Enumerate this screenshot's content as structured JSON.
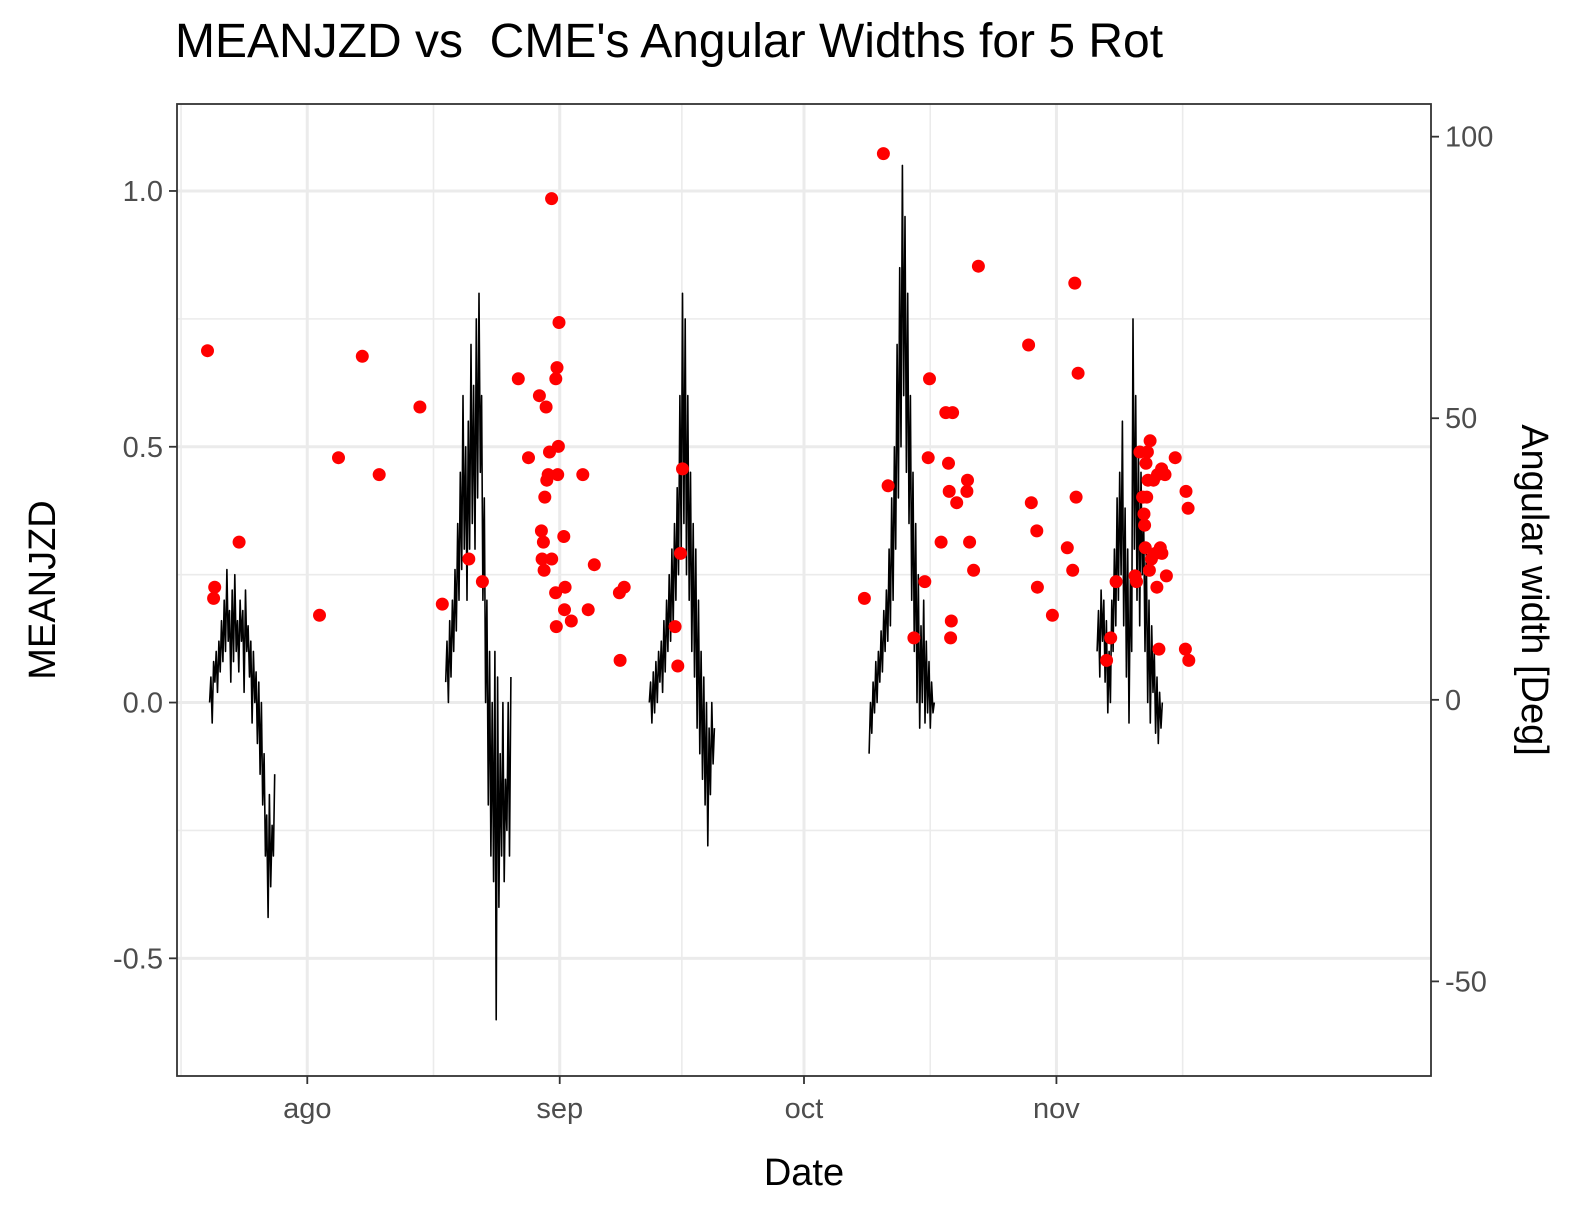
{
  "chart_data": {
    "type": "line",
    "title": "MEANJZD vs  CME's Angular Widths for 5 Rot",
    "xlabel": "Date",
    "ylabel": "MEANJZD",
    "y2label": "Angular width [Deg]",
    "x_ticks": [
      {
        "date": "2015-08-01",
        "label": "ago"
      },
      {
        "date": "2015-09-01",
        "label": "sep"
      },
      {
        "date": "2015-10-01",
        "label": "oct"
      },
      {
        "date": "2015-11-01",
        "label": "nov"
      }
    ],
    "xlim": [
      "2015-07-16",
      "2015-12-17"
    ],
    "ylim": [
      -0.73,
      1.17
    ],
    "y_ticks": [
      "-0.5",
      "0.0",
      "0.5",
      "1.0"
    ],
    "y2lim": [
      -66.8,
      105.8
    ],
    "y2_ticks": [
      "-50",
      "0",
      "50",
      "100"
    ],
    "grid": true,
    "series": [
      {
        "kind": "line",
        "color": "#000000",
        "segments": [
          {
            "start": "2015-07-20",
            "end": "2015-07-28",
            "values": [
              0.0,
              0.05,
              -0.04,
              0.08,
              0.04,
              0.1,
              0.02,
              0.12,
              0.06,
              0.16,
              0.08,
              0.2,
              0.1,
              0.26,
              0.12,
              0.18,
              0.04,
              0.22,
              0.08,
              0.25,
              0.1,
              0.16,
              0.06,
              0.2,
              0.12,
              0.18,
              0.02,
              0.22,
              0.1,
              0.15,
              0.05,
              0.12,
              -0.04,
              0.1,
              0.0,
              0.06,
              -0.08,
              0.04,
              -0.14,
              0.0,
              -0.2,
              -0.1,
              -0.3,
              -0.22,
              -0.42,
              -0.18,
              -0.36,
              -0.24,
              -0.3,
              -0.14
            ]
          },
          {
            "start": "2015-08-18",
            "end": "2015-08-26",
            "values": [
              0.04,
              0.12,
              0.0,
              0.16,
              0.05,
              0.2,
              0.1,
              0.26,
              0.14,
              0.35,
              0.2,
              0.45,
              0.26,
              0.6,
              0.3,
              0.5,
              0.2,
              0.55,
              0.3,
              0.7,
              0.35,
              0.62,
              0.3,
              0.75,
              0.4,
              0.8,
              0.45,
              0.6,
              0.2,
              0.4,
              0.0,
              0.2,
              -0.2,
              0.1,
              -0.3,
              0.0,
              -0.35,
              0.1,
              -0.62,
              0.05,
              -0.4,
              -0.1,
              -0.3,
              0.0,
              -0.35,
              -0.15,
              -0.25,
              0.0,
              -0.3,
              0.05
            ]
          },
          {
            "start": "2015-09-12",
            "end": "2015-09-20",
            "values": [
              0.0,
              0.04,
              -0.04,
              0.06,
              -0.02,
              0.08,
              0.0,
              0.1,
              0.04,
              0.12,
              0.02,
              0.16,
              0.06,
              0.2,
              0.1,
              0.25,
              0.12,
              0.3,
              0.15,
              0.35,
              0.2,
              0.42,
              0.25,
              0.6,
              0.3,
              0.8,
              0.35,
              0.75,
              0.25,
              0.6,
              0.2,
              0.45,
              0.1,
              0.35,
              0.05,
              0.3,
              -0.05,
              0.2,
              -0.1,
              0.1,
              -0.15,
              0.05,
              -0.2,
              0.0,
              -0.28,
              -0.05,
              -0.18,
              0.0,
              -0.12,
              -0.05
            ]
          },
          {
            "start": "2015-10-09",
            "end": "2015-10-17",
            "values": [
              -0.1,
              0.0,
              -0.06,
              0.04,
              -0.02,
              0.08,
              0.0,
              0.1,
              0.04,
              0.14,
              0.06,
              0.18,
              0.1,
              0.22,
              0.12,
              0.3,
              0.15,
              0.4,
              0.2,
              0.5,
              0.3,
              0.7,
              0.4,
              0.85,
              0.5,
              1.05,
              0.6,
              0.95,
              0.45,
              0.8,
              0.35,
              0.6,
              0.2,
              0.45,
              0.1,
              0.35,
              0.0,
              0.25,
              -0.05,
              0.15,
              0.0,
              0.2,
              -0.04,
              0.12,
              -0.02,
              0.08,
              -0.05,
              0.04,
              -0.02,
              0.0
            ]
          },
          {
            "start": "2015-11-06",
            "end": "2015-11-14",
            "values": [
              0.1,
              0.18,
              0.05,
              0.22,
              0.12,
              0.2,
              0.04,
              0.16,
              -0.02,
              0.1,
              0.0,
              0.2,
              0.1,
              0.3,
              0.15,
              0.4,
              0.2,
              0.45,
              0.25,
              0.55,
              0.15,
              0.38,
              0.05,
              0.3,
              -0.04,
              0.25,
              0.1,
              0.75,
              0.3,
              0.6,
              0.2,
              0.5,
              0.15,
              0.45,
              0.25,
              0.35,
              0.1,
              0.3,
              0.0,
              0.2,
              -0.04,
              0.15,
              0.02,
              0.1,
              -0.06,
              0.05,
              -0.08,
              0.02,
              -0.05,
              0.0
            ]
          }
        ]
      },
      {
        "kind": "scatter",
        "axis": "y2",
        "color": "#ff0000",
        "points": [
          [
            "2015-07-19 18:00",
            62
          ],
          [
            "2015-07-20 12:00",
            18
          ],
          [
            "2015-07-20 15:00",
            20
          ],
          [
            "2015-07-23 15:00",
            28
          ],
          [
            "2015-08-02 12:00",
            15
          ],
          [
            "2015-08-04 20:00",
            43
          ],
          [
            "2015-08-07 18:00",
            61
          ],
          [
            "2015-08-09 20:00",
            40
          ],
          [
            "2015-08-14 20:00",
            52
          ],
          [
            "2015-08-17 14:00",
            17
          ],
          [
            "2015-08-20 20:00",
            25
          ],
          [
            "2015-08-22 12:00",
            21
          ],
          [
            "2015-08-26 22:00",
            57
          ],
          [
            "2015-08-28 04:00",
            43
          ],
          [
            "2015-08-29 12:00",
            54
          ],
          [
            "2015-08-29 18:00",
            30
          ],
          [
            "2015-08-29 20:00",
            25
          ],
          [
            "2015-08-30 00:00",
            28
          ],
          [
            "2015-08-30 02:00",
            23
          ],
          [
            "2015-08-30 04:00",
            36
          ],
          [
            "2015-08-30 08:00",
            52
          ],
          [
            "2015-08-30 10:00",
            39
          ],
          [
            "2015-08-30 14:00",
            40
          ],
          [
            "2015-08-30 18:00",
            44
          ],
          [
            "2015-08-31 00:00",
            89
          ],
          [
            "2015-08-31 00:20",
            25
          ],
          [
            "2015-08-31 12:00",
            19
          ],
          [
            "2015-08-31 12:30",
            57
          ],
          [
            "2015-08-31 14:00",
            13
          ],
          [
            "2015-08-31 16:00",
            59
          ],
          [
            "2015-08-31 18:00",
            40
          ],
          [
            "2015-08-31 20:00",
            45
          ],
          [
            "2015-08-31 22:00",
            67
          ],
          [
            "2015-09-01 12:00",
            29
          ],
          [
            "2015-09-01 14:00",
            16
          ],
          [
            "2015-09-01 16:00",
            20
          ],
          [
            "2015-09-02 10:00",
            14
          ],
          [
            "2015-09-03 20:00",
            40
          ],
          [
            "2015-09-04 12:00",
            16
          ],
          [
            "2015-09-05 06:00",
            24
          ],
          [
            "2015-09-08 08:00",
            19
          ],
          [
            "2015-09-08 10:00",
            7
          ],
          [
            "2015-09-08 22:00",
            20
          ],
          [
            "2015-09-15 04:00",
            13
          ],
          [
            "2015-09-15 12:00",
            6
          ],
          [
            "2015-09-15 20:00",
            26
          ],
          [
            "2015-09-16 02:00",
            41
          ],
          [
            "2015-10-08 10:00",
            18
          ],
          [
            "2015-10-10 18:00",
            97
          ],
          [
            "2015-10-11 08:00",
            38
          ],
          [
            "2015-10-14 12:00",
            11
          ],
          [
            "2015-10-15 20:00",
            21
          ],
          [
            "2015-10-16 06:00",
            43
          ],
          [
            "2015-10-16 10:00",
            57
          ],
          [
            "2015-10-17 20:00",
            28
          ],
          [
            "2015-10-18 10:00",
            51
          ],
          [
            "2015-10-18 18:00",
            42
          ],
          [
            "2015-10-18 20:00",
            37
          ],
          [
            "2015-10-19 00:00",
            11
          ],
          [
            "2015-10-19 02:00",
            14
          ],
          [
            "2015-10-19 06:00",
            51
          ],
          [
            "2015-10-19 18:00",
            35
          ],
          [
            "2015-10-21 00:00",
            37
          ],
          [
            "2015-10-21 02:00",
            39
          ],
          [
            "2015-10-21 08:00",
            28
          ],
          [
            "2015-10-21 20:00",
            23
          ],
          [
            "2015-10-22 10:00",
            77
          ],
          [
            "2015-10-28 14:00",
            63
          ],
          [
            "2015-10-28 22:00",
            35
          ],
          [
            "2015-10-29 14:00",
            30
          ],
          [
            "2015-10-29 16:00",
            20
          ],
          [
            "2015-10-31 12:00",
            15
          ],
          [
            "2015-11-02 08:00",
            27
          ],
          [
            "2015-11-03 00:00",
            23
          ],
          [
            "2015-11-03 06:00",
            74
          ],
          [
            "2015-11-03 10:00",
            36
          ],
          [
            "2015-11-03 16:00",
            58
          ],
          [
            "2015-11-07 04:00",
            7
          ],
          [
            "2015-11-07 16:00",
            11
          ],
          [
            "2015-11-08 08:00",
            21
          ],
          [
            "2015-11-10 16:00",
            22
          ],
          [
            "2015-11-10 20:00",
            21
          ],
          [
            "2015-11-11 06:00",
            44
          ],
          [
            "2015-11-11 14:00",
            36
          ],
          [
            "2015-11-11 18:00",
            33
          ],
          [
            "2015-11-11 20:00",
            31
          ],
          [
            "2015-11-11 22:00",
            27
          ],
          [
            "2015-11-12 00:00",
            42
          ],
          [
            "2015-11-12 02:00",
            36
          ],
          [
            "2015-11-12 04:00",
            44
          ],
          [
            "2015-11-12 06:00",
            39
          ],
          [
            "2015-11-12 10:00",
            23
          ],
          [
            "2015-11-12 12:00",
            46
          ],
          [
            "2015-11-12 16:00",
            25
          ],
          [
            "2015-11-12 22:00",
            39
          ],
          [
            "2015-11-13 04:00",
            26
          ],
          [
            "2015-11-13 08:00",
            20
          ],
          [
            "2015-11-13 10:00",
            40
          ],
          [
            "2015-11-13 14:00",
            9
          ],
          [
            "2015-11-13 18:00",
            27
          ],
          [
            "2015-11-13 22:00",
            41
          ],
          [
            "2015-11-13 23:00",
            26
          ],
          [
            "2015-11-14 08:00",
            40
          ],
          [
            "2015-11-14 12:00",
            22
          ],
          [
            "2015-11-15 14:00",
            43
          ],
          [
            "2015-11-16 20:00",
            9
          ],
          [
            "2015-11-16 22:00",
            37
          ],
          [
            "2015-11-17 04:00",
            34
          ],
          [
            "2015-11-17 06:00",
            7
          ]
        ]
      }
    ]
  }
}
